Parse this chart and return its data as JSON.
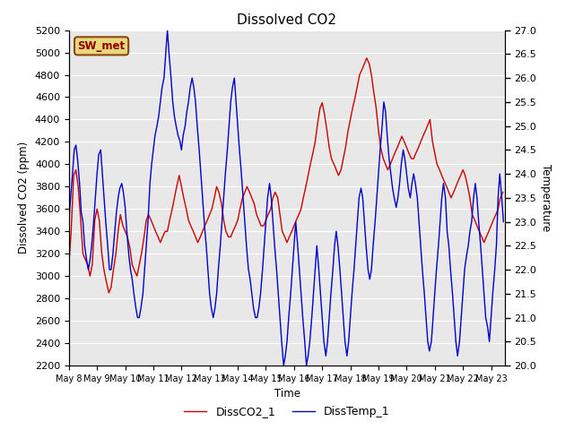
{
  "title": "Dissolved CO2",
  "xlabel": "Time",
  "ylabel_left": "Dissolved CO2 (ppm)",
  "ylabel_right": "Temperature",
  "ylim_left": [
    2200,
    5200
  ],
  "ylim_right": [
    20.0,
    27.0
  ],
  "yticks_left": [
    2200,
    2400,
    2600,
    2800,
    3000,
    3200,
    3400,
    3600,
    3800,
    4000,
    4200,
    4400,
    4600,
    4800,
    5000,
    5200
  ],
  "yticks_right": [
    20.0,
    20.5,
    21.0,
    21.5,
    22.0,
    22.5,
    23.0,
    23.5,
    24.0,
    24.5,
    25.0,
    25.5,
    26.0,
    26.5,
    27.0
  ],
  "xlim": [
    0,
    15.5
  ],
  "xtick_labels": [
    "May 8",
    "May 9",
    "May 10",
    "May 11",
    "May 12",
    "May 13",
    "May 14",
    "May 15",
    "May 16",
    "May 17",
    "May 18",
    "May 19",
    "May 20",
    "May 21",
    "May 22",
    "May 23"
  ],
  "xtick_positions": [
    0,
    1,
    2,
    3,
    4,
    5,
    6,
    7,
    8,
    9,
    10,
    11,
    12,
    13,
    14,
    15
  ],
  "color_co2": "#cc0000",
  "color_temp": "#0000cc",
  "legend_label_co2": "DissCO2_1",
  "legend_label_temp": "DissTemp_1",
  "station_label": "SW_met",
  "background_color": "#e8e8e8",
  "grid_color": "#ffffff",
  "co2_x": [
    0.0,
    0.08,
    0.17,
    0.25,
    0.33,
    0.42,
    0.5,
    0.58,
    0.67,
    0.75,
    0.83,
    0.92,
    1.0,
    1.08,
    1.17,
    1.25,
    1.33,
    1.42,
    1.5,
    1.58,
    1.67,
    1.75,
    1.83,
    1.92,
    2.0,
    2.08,
    2.17,
    2.25,
    2.33,
    2.42,
    2.5,
    2.58,
    2.67,
    2.75,
    2.83,
    2.92,
    3.0,
    3.08,
    3.17,
    3.25,
    3.33,
    3.42,
    3.5,
    3.58,
    3.67,
    3.75,
    3.83,
    3.92,
    4.0,
    4.08,
    4.17,
    4.25,
    4.33,
    4.42,
    4.5,
    4.58,
    4.67,
    4.75,
    4.83,
    4.92,
    5.0,
    5.08,
    5.17,
    5.25,
    5.33,
    5.42,
    5.5,
    5.58,
    5.67,
    5.75,
    5.83,
    5.92,
    6.0,
    6.08,
    6.17,
    6.25,
    6.33,
    6.42,
    6.5,
    6.58,
    6.67,
    6.75,
    6.83,
    6.92,
    7.0,
    7.08,
    7.17,
    7.25,
    7.33,
    7.42,
    7.5,
    7.58,
    7.67,
    7.75,
    7.83,
    7.92,
    8.0,
    8.08,
    8.17,
    8.25,
    8.33,
    8.42,
    8.5,
    8.58,
    8.67,
    8.75,
    8.83,
    8.92,
    9.0,
    9.08,
    9.17,
    9.25,
    9.33,
    9.42,
    9.5,
    9.58,
    9.67,
    9.75,
    9.83,
    9.92,
    10.0,
    10.08,
    10.17,
    10.25,
    10.33,
    10.42,
    10.5,
    10.58,
    10.67,
    10.75,
    10.83,
    10.92,
    11.0,
    11.08,
    11.17,
    11.25,
    11.33,
    11.42,
    11.5,
    11.58,
    11.67,
    11.75,
    11.83,
    11.92,
    12.0,
    12.08,
    12.17,
    12.25,
    12.33,
    12.42,
    12.5,
    12.58,
    12.67,
    12.75,
    12.83,
    12.92,
    13.0,
    13.08,
    13.17,
    13.25,
    13.33,
    13.42,
    13.5,
    13.58,
    13.67,
    13.75,
    13.83,
    13.92,
    14.0,
    14.08,
    14.17,
    14.25,
    14.33,
    14.42,
    14.5,
    14.58,
    14.67,
    14.75,
    14.83,
    14.92,
    15.0,
    15.08,
    15.17,
    15.25,
    15.33,
    15.42
  ],
  "co2_y": [
    3100,
    3400,
    3900,
    3950,
    3800,
    3500,
    3200,
    3150,
    3100,
    3000,
    3100,
    3500,
    3600,
    3500,
    3200,
    3050,
    2950,
    2850,
    2900,
    3050,
    3200,
    3400,
    3550,
    3450,
    3400,
    3350,
    3250,
    3100,
    3050,
    3000,
    3100,
    3200,
    3350,
    3500,
    3550,
    3500,
    3450,
    3400,
    3350,
    3300,
    3350,
    3400,
    3400,
    3500,
    3600,
    3700,
    3800,
    3900,
    3800,
    3700,
    3600,
    3500,
    3450,
    3400,
    3350,
    3300,
    3350,
    3400,
    3450,
    3500,
    3550,
    3600,
    3700,
    3800,
    3750,
    3650,
    3500,
    3400,
    3350,
    3350,
    3400,
    3450,
    3500,
    3600,
    3700,
    3750,
    3800,
    3750,
    3700,
    3650,
    3550,
    3500,
    3450,
    3450,
    3500,
    3550,
    3600,
    3700,
    3750,
    3700,
    3550,
    3400,
    3350,
    3300,
    3350,
    3400,
    3450,
    3500,
    3550,
    3600,
    3700,
    3800,
    3900,
    4000,
    4100,
    4200,
    4350,
    4500,
    4550,
    4450,
    4300,
    4150,
    4050,
    4000,
    3950,
    3900,
    3950,
    4050,
    4150,
    4300,
    4400,
    4500,
    4600,
    4700,
    4800,
    4850,
    4900,
    4950,
    4900,
    4800,
    4650,
    4500,
    4300,
    4150,
    4050,
    4000,
    3950,
    4000,
    4050,
    4100,
    4150,
    4200,
    4250,
    4200,
    4150,
    4100,
    4050,
    4050,
    4100,
    4150,
    4200,
    4250,
    4300,
    4350,
    4400,
    4200,
    4100,
    4000,
    3950,
    3900,
    3850,
    3800,
    3750,
    3700,
    3750,
    3800,
    3850,
    3900,
    3950,
    3900,
    3800,
    3700,
    3550,
    3500,
    3450,
    3400,
    3350,
    3300,
    3350,
    3400,
    3450,
    3500,
    3550,
    3600,
    3700,
    3750
  ],
  "temp_x": [
    0.0,
    0.06,
    0.13,
    0.19,
    0.25,
    0.31,
    0.38,
    0.44,
    0.5,
    0.56,
    0.63,
    0.69,
    0.75,
    0.81,
    0.88,
    0.94,
    1.0,
    1.06,
    1.13,
    1.19,
    1.25,
    1.31,
    1.38,
    1.44,
    1.5,
    1.56,
    1.63,
    1.69,
    1.75,
    1.81,
    1.88,
    1.94,
    2.0,
    2.06,
    2.13,
    2.19,
    2.25,
    2.31,
    2.38,
    2.44,
    2.5,
    2.56,
    2.63,
    2.69,
    2.75,
    2.81,
    2.88,
    2.94,
    3.0,
    3.06,
    3.13,
    3.19,
    3.25,
    3.31,
    3.38,
    3.44,
    3.5,
    3.56,
    3.63,
    3.69,
    3.75,
    3.81,
    3.88,
    3.94,
    4.0,
    4.06,
    4.13,
    4.19,
    4.25,
    4.31,
    4.38,
    4.44,
    4.5,
    4.56,
    4.63,
    4.69,
    4.75,
    4.81,
    4.88,
    4.94,
    5.0,
    5.06,
    5.13,
    5.19,
    5.25,
    5.31,
    5.38,
    5.44,
    5.5,
    5.56,
    5.63,
    5.69,
    5.75,
    5.81,
    5.88,
    5.94,
    6.0,
    6.06,
    6.13,
    6.19,
    6.25,
    6.31,
    6.38,
    6.44,
    6.5,
    6.56,
    6.63,
    6.69,
    6.75,
    6.81,
    6.88,
    6.94,
    7.0,
    7.06,
    7.13,
    7.19,
    7.25,
    7.31,
    7.38,
    7.44,
    7.5,
    7.56,
    7.63,
    7.69,
    7.75,
    7.81,
    7.88,
    7.94,
    8.0,
    8.06,
    8.13,
    8.19,
    8.25,
    8.31,
    8.38,
    8.44,
    8.5,
    8.56,
    8.63,
    8.69,
    8.75,
    8.81,
    8.88,
    8.94,
    9.0,
    9.06,
    9.13,
    9.19,
    9.25,
    9.31,
    9.38,
    9.44,
    9.5,
    9.56,
    9.63,
    9.69,
    9.75,
    9.81,
    9.88,
    9.94,
    10.0,
    10.06,
    10.13,
    10.19,
    10.25,
    10.31,
    10.38,
    10.44,
    10.5,
    10.56,
    10.63,
    10.69,
    10.75,
    10.81,
    10.88,
    10.94,
    11.0,
    11.06,
    11.13,
    11.19,
    11.25,
    11.31,
    11.38,
    11.44,
    11.5,
    11.56,
    11.63,
    11.69,
    11.75,
    11.81,
    11.88,
    11.94,
    12.0,
    12.06,
    12.13,
    12.19,
    12.25,
    12.31,
    12.38,
    12.44,
    12.5,
    12.56,
    12.63,
    12.69,
    12.75,
    12.81,
    12.88,
    12.94,
    13.0,
    13.06,
    13.13,
    13.19,
    13.25,
    13.31,
    13.38,
    13.44,
    13.5,
    13.56,
    13.63,
    13.69,
    13.75,
    13.81,
    13.88,
    13.94,
    14.0,
    14.06,
    14.13,
    14.19,
    14.25,
    14.31,
    14.38,
    14.44,
    14.5,
    14.56,
    14.63,
    14.69,
    14.75,
    14.81,
    14.88,
    14.94,
    15.0,
    15.06,
    15.13,
    15.19,
    15.25,
    15.31,
    15.38,
    15.44
  ],
  "temp_y": [
    23.0,
    23.5,
    24.0,
    24.5,
    24.6,
    24.3,
    23.8,
    23.2,
    23.0,
    22.5,
    22.2,
    22.0,
    22.2,
    22.5,
    23.0,
    23.5,
    24.0,
    24.4,
    24.5,
    24.0,
    23.5,
    23.0,
    22.5,
    22.0,
    22.0,
    22.3,
    22.8,
    23.2,
    23.5,
    23.7,
    23.8,
    23.6,
    23.3,
    22.8,
    22.3,
    22.0,
    21.8,
    21.5,
    21.2,
    21.0,
    21.0,
    21.2,
    21.5,
    22.0,
    22.5,
    23.0,
    23.8,
    24.2,
    24.5,
    24.8,
    25.0,
    25.2,
    25.5,
    25.8,
    26.0,
    26.5,
    27.0,
    26.5,
    26.0,
    25.5,
    25.2,
    25.0,
    24.8,
    24.7,
    24.5,
    24.8,
    25.0,
    25.3,
    25.5,
    25.8,
    26.0,
    25.8,
    25.5,
    25.0,
    24.5,
    24.0,
    23.5,
    23.0,
    22.5,
    22.0,
    21.5,
    21.2,
    21.0,
    21.2,
    21.5,
    22.0,
    22.5,
    23.0,
    23.5,
    24.0,
    24.5,
    25.0,
    25.5,
    25.8,
    26.0,
    25.5,
    25.0,
    24.5,
    24.0,
    23.5,
    23.0,
    22.5,
    22.0,
    21.8,
    21.5,
    21.2,
    21.0,
    21.0,
    21.2,
    21.5,
    22.0,
    22.5,
    23.0,
    23.5,
    23.8,
    23.5,
    23.0,
    22.5,
    22.0,
    21.5,
    21.0,
    20.5,
    20.0,
    20.2,
    20.5,
    21.0,
    21.5,
    22.0,
    22.5,
    23.0,
    22.5,
    22.0,
    21.5,
    21.0,
    20.5,
    20.0,
    20.2,
    20.5,
    21.0,
    21.5,
    22.0,
    22.5,
    22.0,
    21.5,
    21.0,
    20.5,
    20.2,
    20.5,
    21.0,
    21.5,
    22.0,
    22.5,
    22.8,
    22.5,
    22.0,
    21.5,
    21.0,
    20.5,
    20.2,
    20.5,
    21.0,
    21.5,
    22.0,
    22.5,
    23.0,
    23.5,
    23.7,
    23.5,
    23.0,
    22.5,
    22.0,
    21.8,
    22.0,
    22.5,
    23.0,
    23.5,
    24.0,
    24.5,
    25.0,
    25.5,
    25.3,
    24.8,
    24.3,
    24.0,
    23.7,
    23.5,
    23.3,
    23.5,
    23.8,
    24.2,
    24.5,
    24.3,
    24.0,
    23.7,
    23.5,
    23.8,
    24.0,
    23.8,
    23.5,
    23.0,
    22.5,
    22.0,
    21.5,
    21.0,
    20.5,
    20.3,
    20.5,
    21.0,
    21.5,
    22.0,
    22.5,
    23.0,
    23.5,
    23.8,
    23.5,
    22.8,
    22.5,
    22.0,
    21.5,
    21.0,
    20.5,
    20.2,
    20.5,
    21.0,
    21.5,
    22.0,
    22.3,
    22.5,
    22.8,
    23.0,
    23.5,
    23.8,
    23.5,
    23.0,
    22.5,
    22.0,
    21.5,
    21.0,
    20.8,
    20.5,
    21.0,
    21.5,
    22.0,
    22.5,
    23.5,
    24.0,
    23.5,
    23.0
  ]
}
